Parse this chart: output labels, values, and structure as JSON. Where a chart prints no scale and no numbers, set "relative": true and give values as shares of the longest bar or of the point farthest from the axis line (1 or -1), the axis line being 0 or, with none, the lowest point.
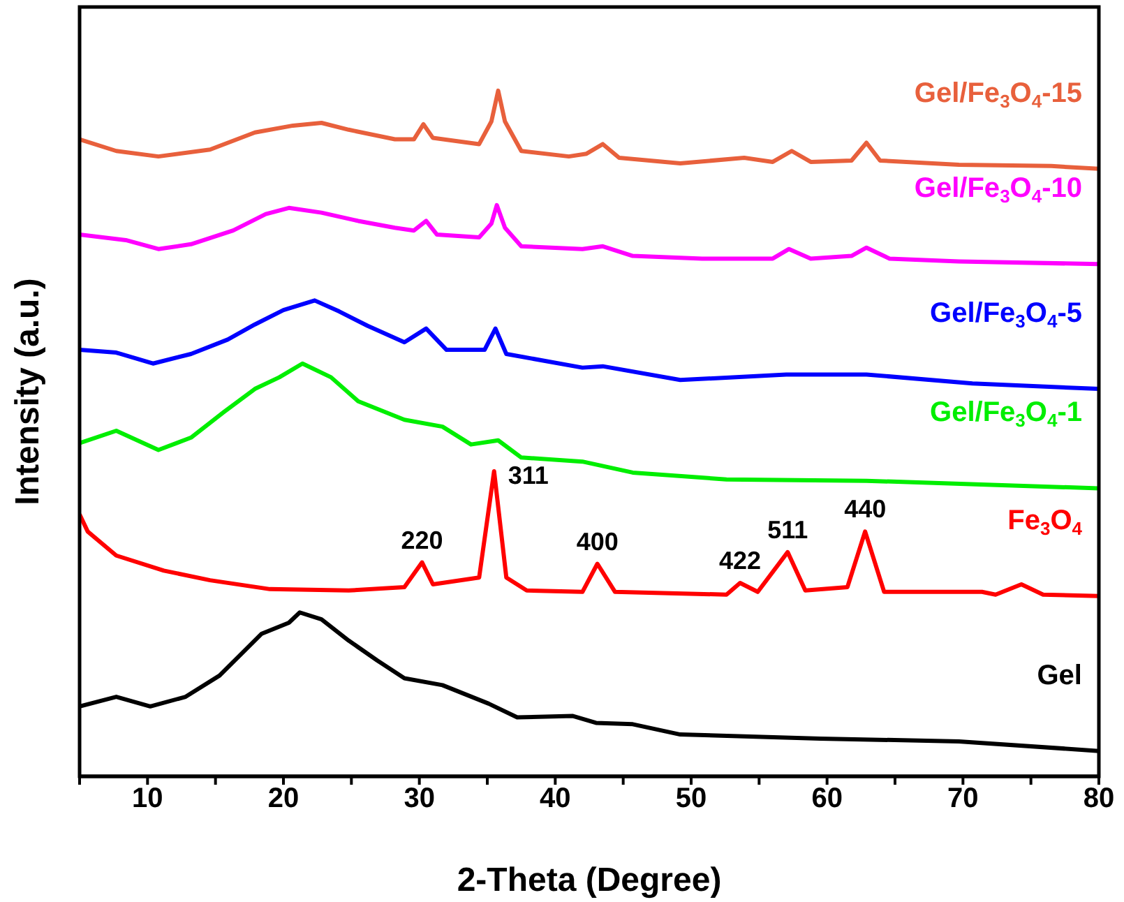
{
  "chart_data": {
    "type": "line",
    "relative": true,
    "xlabel": "2-Theta (Degree)",
    "ylabel": "Intensity (a.u.)",
    "xlim": [
      5,
      80
    ],
    "xticks": [
      {
        "value": 5,
        "label": null
      },
      10,
      {
        "value": 15,
        "label": null
      },
      20,
      {
        "value": 25,
        "label": null
      },
      30,
      {
        "value": 35,
        "label": null
      },
      40,
      {
        "value": 45,
        "label": null
      },
      50,
      {
        "value": 55,
        "label": null
      },
      60,
      {
        "value": 65,
        "label": null
      },
      70,
      {
        "value": 75,
        "label": null
      },
      80
    ],
    "marker": "none",
    "line_style": "solid",
    "series": [
      {
        "name": "Gel/Fe$_{3}$O$_{4}$-15",
        "color": "#e8603c",
        "x": [
          5,
          7.7,
          10.8,
          14.6,
          17.9,
          20.7,
          22.8,
          24.8,
          28.2,
          29.6,
          30.3,
          31,
          34.4,
          35.3,
          35.8,
          36.3,
          37.5,
          41,
          42.3,
          43.5,
          44.7,
          49.2,
          53.9,
          56,
          57.4,
          58.8,
          61.8,
          62.9,
          63.9,
          69.7,
          76.5,
          80
        ],
        "values": [
          0.929,
          0.912,
          0.904,
          0.914,
          0.939,
          0.949,
          0.953,
          0.943,
          0.929,
          0.929,
          0.951,
          0.931,
          0.922,
          0.955,
          1.0,
          0.955,
          0.912,
          0.904,
          0.908,
          0.922,
          0.902,
          0.894,
          0.902,
          0.896,
          0.912,
          0.896,
          0.898,
          0.924,
          0.898,
          0.892,
          0.89,
          0.886
        ]
      },
      {
        "name": "Gel/Fe$_{3}$O$_{4}$-10",
        "color": "#ff00ff",
        "x": [
          5,
          8.4,
          10.8,
          13.2,
          16.3,
          18.7,
          20.4,
          22.8,
          25.5,
          28.2,
          29.6,
          30.5,
          31.3,
          34.4,
          35.3,
          35.7,
          36.3,
          37.5,
          42,
          43.5,
          45.7,
          50.8,
          56,
          57.2,
          58.8,
          61.8,
          62.9,
          64.6,
          69.7,
          80
        ],
        "values": [
          0.79,
          0.782,
          0.769,
          0.776,
          0.796,
          0.82,
          0.829,
          0.822,
          0.81,
          0.8,
          0.796,
          0.81,
          0.79,
          0.786,
          0.806,
          0.833,
          0.8,
          0.773,
          0.769,
          0.773,
          0.759,
          0.755,
          0.755,
          0.769,
          0.755,
          0.759,
          0.771,
          0.755,
          0.751,
          0.747
        ]
      },
      {
        "name": "Gel/Fe$_{3}$O$_{4}$-5",
        "color": "#0000ff",
        "x": [
          5,
          7.7,
          10.4,
          13.2,
          15.9,
          17.9,
          20,
          22.3,
          24.1,
          26.2,
          28.9,
          30.5,
          32,
          34.8,
          35.6,
          36.4,
          42,
          43.5,
          49.2,
          57,
          62.9,
          70.7,
          80
        ],
        "values": [
          0.622,
          0.618,
          0.602,
          0.616,
          0.637,
          0.659,
          0.68,
          0.694,
          0.678,
          0.657,
          0.633,
          0.653,
          0.622,
          0.622,
          0.653,
          0.616,
          0.596,
          0.598,
          0.578,
          0.586,
          0.586,
          0.573,
          0.565
        ]
      },
      {
        "name": "Gel/Fe$_{3}$O$_{4}$-1",
        "color": "#00ee00",
        "x": [
          5,
          7.7,
          10.8,
          13.2,
          15.6,
          17.9,
          19.7,
          21.4,
          23.5,
          25.5,
          28.9,
          31.7,
          33.8,
          35.8,
          37.5,
          42,
          45.7,
          52.6,
          62.9,
          80
        ],
        "values": [
          0.486,
          0.504,
          0.476,
          0.494,
          0.531,
          0.565,
          0.582,
          0.602,
          0.582,
          0.547,
          0.52,
          0.51,
          0.484,
          0.49,
          0.465,
          0.459,
          0.443,
          0.433,
          0.431,
          0.42
        ]
      },
      {
        "name": "Fe$_{3}$O$_{4}$",
        "color": "#ff0000",
        "x": [
          5,
          5.6,
          7.7,
          11.2,
          14.6,
          19,
          24.8,
          28.9,
          30.2,
          31,
          34.4,
          35.5,
          36.4,
          37.9,
          42,
          43.1,
          44.4,
          52.6,
          53.6,
          54.9,
          57.1,
          58.4,
          61.5,
          62.8,
          64.2,
          71.4,
          72.4,
          74.3,
          75.9,
          80
        ],
        "values": [
          0.382,
          0.357,
          0.322,
          0.3,
          0.286,
          0.273,
          0.271,
          0.276,
          0.312,
          0.28,
          0.29,
          0.445,
          0.29,
          0.271,
          0.269,
          0.31,
          0.269,
          0.265,
          0.282,
          0.269,
          0.327,
          0.271,
          0.276,
          0.357,
          0.269,
          0.269,
          0.265,
          0.28,
          0.265,
          0.263
        ]
      },
      {
        "name": "Gel",
        "color": "#000000",
        "x": [
          5,
          7.7,
          10.2,
          12.8,
          15.3,
          18.4,
          20.4,
          21.2,
          22.8,
          24.8,
          26.9,
          28.9,
          31.7,
          35.1,
          37.2,
          41.3,
          43,
          45.7,
          49.2,
          59.5,
          69.7,
          80
        ],
        "values": [
          0.102,
          0.116,
          0.102,
          0.116,
          0.147,
          0.208,
          0.224,
          0.239,
          0.229,
          0.198,
          0.169,
          0.143,
          0.133,
          0.106,
          0.086,
          0.088,
          0.078,
          0.076,
          0.061,
          0.055,
          0.051,
          0.037
        ]
      }
    ],
    "annotations": [
      {
        "text": "220",
        "x": 30.2,
        "y": 0.312
      },
      {
        "text": "311",
        "x": 35.5,
        "y": 0.445
      },
      {
        "text": "400",
        "x": 43.1,
        "y": 0.31
      },
      {
        "text": "422",
        "x": 53.6,
        "y": 0.282
      },
      {
        "text": "511",
        "x": 57.1,
        "y": 0.327
      },
      {
        "text": "440",
        "x": 62.8,
        "y": 0.357
      }
    ]
  }
}
